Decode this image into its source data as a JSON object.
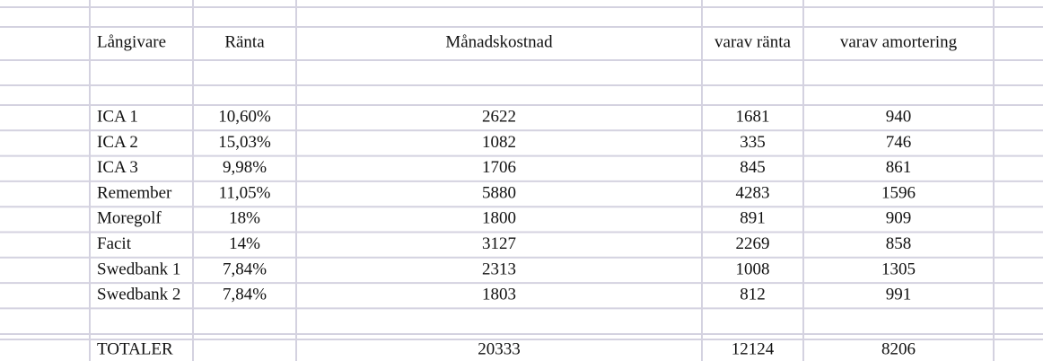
{
  "table": {
    "header": [
      "Långivare",
      "Ränta",
      "Månadskostnad",
      "varav ränta",
      "varav amortering"
    ],
    "rows": [
      [
        "ICA 1",
        "10,60%",
        2622,
        1681,
        940
      ],
      [
        "ICA 2",
        "15,03%",
        1082,
        335,
        746
      ],
      [
        "ICA 3",
        "9,98%",
        1706,
        845,
        861
      ],
      [
        "Remember",
        "11,05%",
        5880,
        4283,
        1596
      ],
      [
        "Moregolf",
        "18%",
        1800,
        891,
        909
      ],
      [
        "Facit",
        "14%",
        3127,
        2269,
        858
      ],
      [
        "Swedbank 1",
        "7,84%",
        2313,
        1008,
        1305
      ],
      [
        "Swedbank 2",
        "7,84%",
        1803,
        812,
        991
      ]
    ],
    "total": [
      "TOTALER",
      20333,
      12124,
      8206
    ]
  }
}
